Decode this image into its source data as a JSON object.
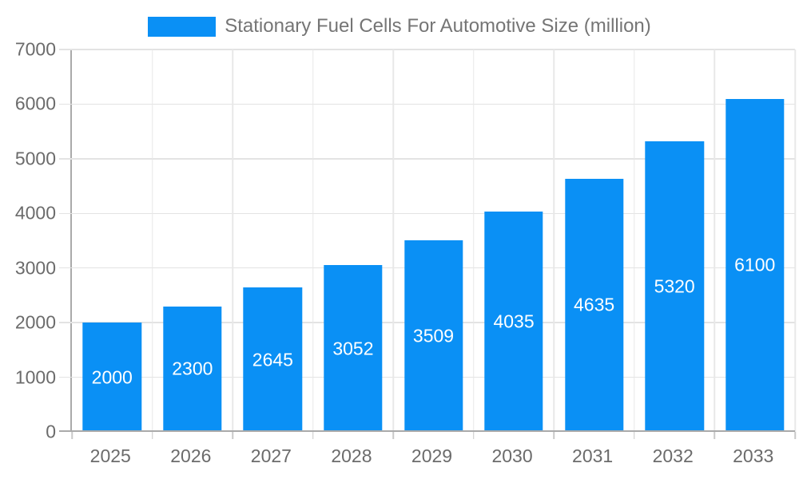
{
  "legend": {
    "label": "Stationary Fuel Cells For Automotive Size (million)",
    "swatch_color": "#0a90f5"
  },
  "chart_data": {
    "type": "bar",
    "title": "Stationary Fuel Cells For Automotive Size (million)",
    "categories": [
      "2025",
      "2026",
      "2027",
      "2028",
      "2029",
      "2030",
      "2031",
      "2032",
      "2033"
    ],
    "series": [
      {
        "name": "Stationary Fuel Cells For Automotive Size (million)",
        "values": [
          2000,
          2300,
          2645,
          3052,
          3509,
          4035,
          4635,
          5320,
          6100
        ]
      }
    ],
    "xlabel": "",
    "ylabel": "",
    "ylim": [
      0,
      7000
    ],
    "ytick_step": 1000,
    "ytick_labels": [
      "0",
      "1000",
      "2000",
      "3000",
      "4000",
      "5000",
      "6000",
      "7000"
    ],
    "grid": true,
    "legend_position": "top-center",
    "bar_color": "#0a90f5",
    "value_label_color": "#ffffff",
    "axis_text_color": "#6b6b6b",
    "grid_color": "#e3e3e3",
    "axis_line_color": "#aaaaaa"
  }
}
